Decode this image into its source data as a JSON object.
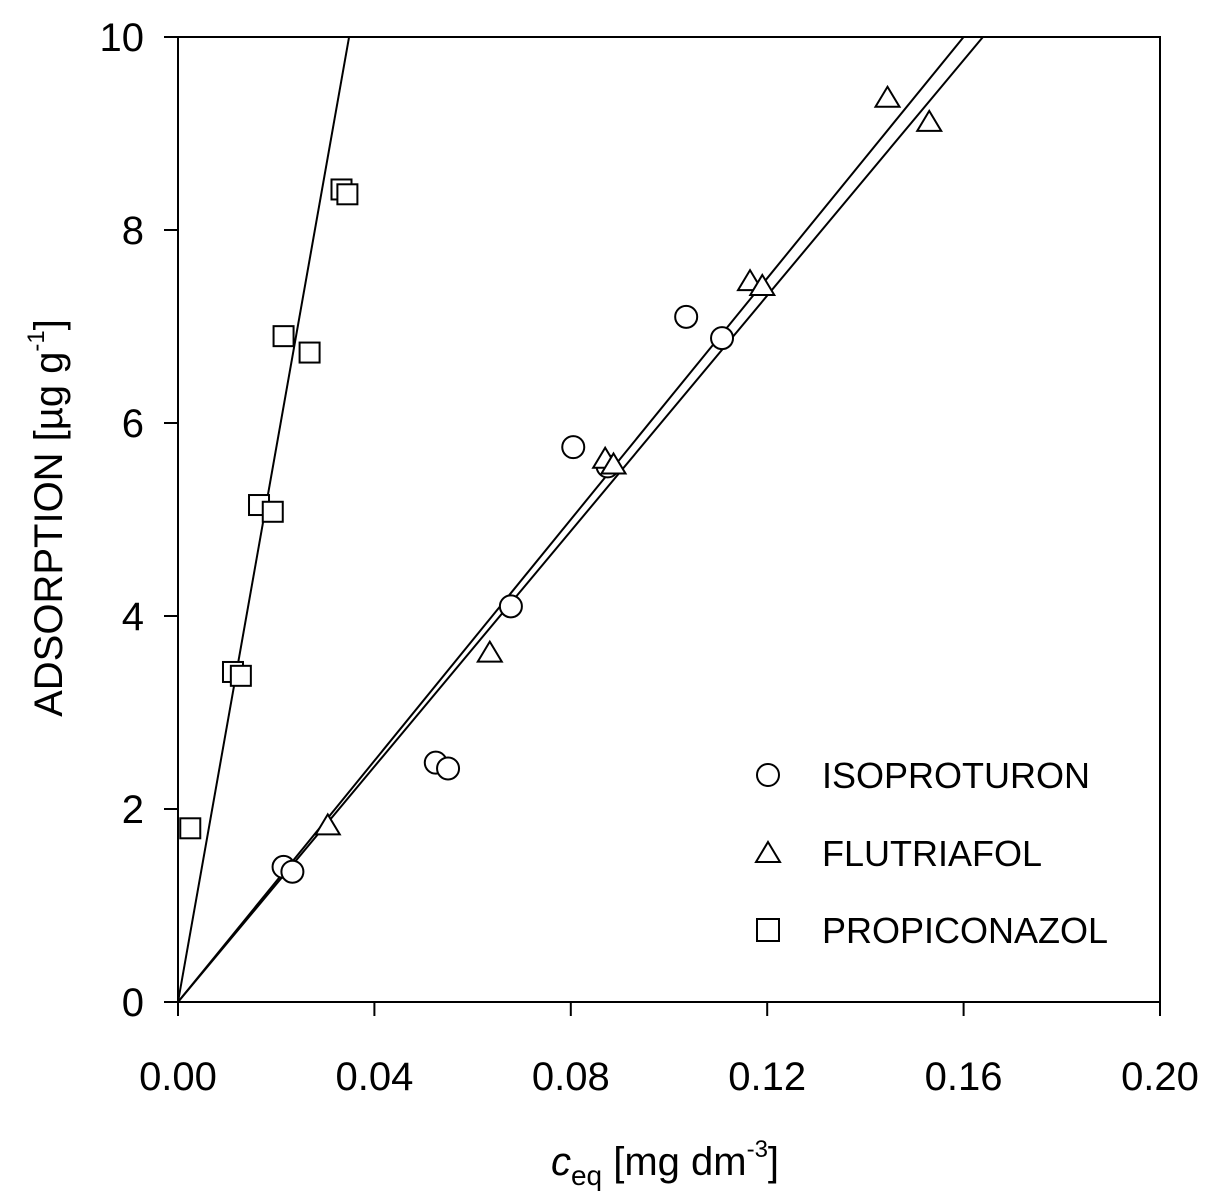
{
  "chart_data": {
    "type": "scatter",
    "title": "",
    "xlabel_main": "c",
    "xlabel_sub": "eq",
    "xlabel_unit_pre": " [mg dm",
    "xlabel_unit_sup": "-3",
    "xlabel_unit_post": "]",
    "ylabel_pre": "ADSORPTION [µg g",
    "ylabel_sup": "-1",
    "ylabel_post": "]",
    "xlim": [
      0,
      0.2
    ],
    "ylim": [
      0,
      10
    ],
    "x_ticks": [
      0,
      0.04,
      0.08,
      0.12,
      0.16,
      0.2
    ],
    "x_tick_labels": [
      "0.00",
      "0.04",
      "0.08",
      "0.12",
      "0.16",
      "0.20"
    ],
    "y_ticks": [
      0,
      2,
      4,
      6,
      8,
      10
    ],
    "y_tick_labels": [
      "0",
      "2",
      "4",
      "6",
      "8",
      "10"
    ],
    "grid": false,
    "legend_position": "bottom-right",
    "series": [
      {
        "name": "ISOPROTURON",
        "marker": "circle",
        "points": [
          [
            0.0215,
            1.4
          ],
          [
            0.0233,
            1.35
          ],
          [
            0.0525,
            2.48
          ],
          [
            0.055,
            2.42
          ],
          [
            0.0678,
            4.1
          ],
          [
            0.0805,
            5.75
          ],
          [
            0.0875,
            5.55
          ],
          [
            0.1035,
            7.1
          ],
          [
            0.1108,
            6.88
          ]
        ],
        "fit_slope": 62.5
      },
      {
        "name": "FLUTRIAFOL",
        "marker": "triangle",
        "points": [
          [
            0.0305,
            1.83
          ],
          [
            0.0635,
            3.62
          ],
          [
            0.087,
            5.63
          ],
          [
            0.0887,
            5.57
          ],
          [
            0.1165,
            7.47
          ],
          [
            0.119,
            7.42
          ],
          [
            0.1445,
            9.37
          ],
          [
            0.153,
            9.12
          ]
        ],
        "fit_slope": 61.0
      },
      {
        "name": "PROPICONAZOL",
        "marker": "square",
        "points": [
          [
            0.0025,
            1.8
          ],
          [
            0.0112,
            3.42
          ],
          [
            0.0128,
            3.38
          ],
          [
            0.0165,
            5.15
          ],
          [
            0.0193,
            5.08
          ],
          [
            0.0215,
            6.9
          ],
          [
            0.0268,
            6.73
          ],
          [
            0.0333,
            8.42
          ],
          [
            0.0345,
            8.37
          ]
        ],
        "fit_slope": 287
      }
    ]
  }
}
